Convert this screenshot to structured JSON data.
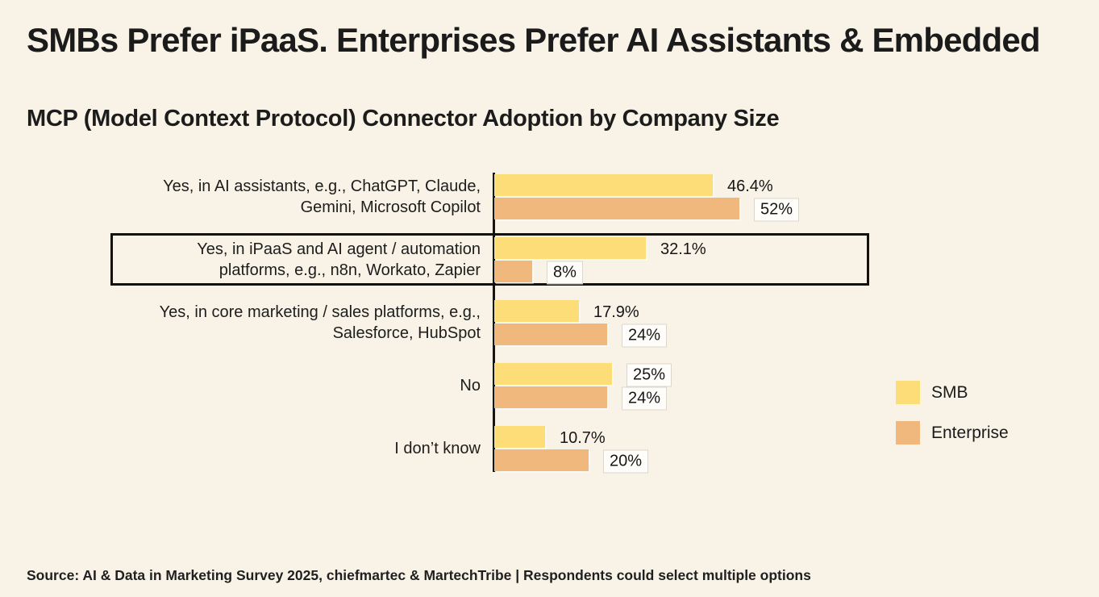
{
  "title": "SMBs Prefer iPaaS. Enterprises Prefer AI Assistants & Embedded",
  "subtitle": "MCP (Model Context Protocol) Connector Adoption by Company Size",
  "source": "Source: AI & Data in Marketing Survey 2025, chiefmartec & MartechTribe | Respondents could select multiple options",
  "colors": {
    "background": "#f8f3e6",
    "smb_bar": "#fcdd78",
    "enterprise_bar": "#f0b87d",
    "axis": "#151515",
    "highlight_border": "#111111",
    "text": "#1c1c1c"
  },
  "legend": {
    "position": "right",
    "items": [
      {
        "label": "SMB",
        "color": "#fcdd78"
      },
      {
        "label": "Enterprise",
        "color": "#f0b87d"
      }
    ]
  },
  "chart_data": {
    "type": "bar",
    "orientation": "horizontal",
    "title": "MCP (Model Context Protocol) Connector Adoption by Company Size",
    "categories": [
      "Yes, in AI assistants, e.g., ChatGPT, Claude, Gemini, Microsoft Copilot",
      "Yes, in iPaaS and AI agent / automation platforms, e.g., n8n, Workato, Zapier",
      "Yes, in core marketing / sales platforms, e.g., Salesforce, HubSpot",
      "No",
      "I don’t know"
    ],
    "category_label_lines": [
      [
        "Yes, in AI assistants, e.g., ChatGPT, Claude,",
        "Gemini, Microsoft Copilot"
      ],
      [
        "Yes, in iPaaS and AI agent / automation",
        "platforms, e.g., n8n, Workato, Zapier"
      ],
      [
        "Yes, in core marketing / sales platforms, e.g.,",
        "Salesforce, HubSpot"
      ],
      [
        "No"
      ],
      [
        "I don’t know"
      ]
    ],
    "series": [
      {
        "name": "SMB",
        "color": "#fcdd78",
        "values": [
          46.4,
          32.1,
          17.9,
          25,
          10.7
        ],
        "labels": [
          "46.4%",
          "32.1%",
          "17.9%",
          "25%",
          "10.7%"
        ],
        "label_boxed": [
          false,
          false,
          false,
          true,
          false
        ]
      },
      {
        "name": "Enterprise",
        "color": "#f0b87d",
        "values": [
          52,
          8,
          24,
          24,
          20
        ],
        "labels": [
          "52%",
          "8%",
          "24%",
          "24%",
          "20%"
        ],
        "label_boxed": [
          true,
          true,
          true,
          true,
          true
        ]
      }
    ],
    "xlim": [
      0,
      60
    ],
    "value_axis": "hidden",
    "grid": false,
    "legend_position": "right",
    "highlighted_category_index": 1
  }
}
